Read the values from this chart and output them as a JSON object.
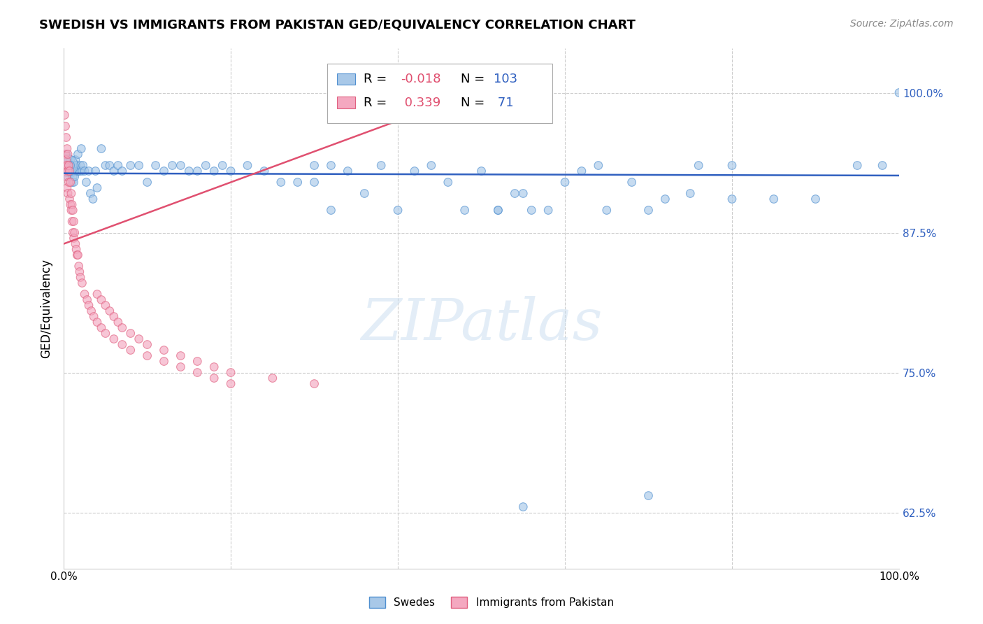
{
  "title": "SWEDISH VS IMMIGRANTS FROM PAKISTAN GED/EQUIVALENCY CORRELATION CHART",
  "source": "Source: ZipAtlas.com",
  "ylabel": "GED/Equivalency",
  "xlim": [
    0.0,
    1.0
  ],
  "ylim": [
    0.575,
    1.04
  ],
  "yticks": [
    0.625,
    0.75,
    0.875,
    1.0
  ],
  "ytick_labels": [
    "62.5%",
    "75.0%",
    "87.5%",
    "100.0%"
  ],
  "xticks": [
    0.0,
    0.2,
    0.4,
    0.6,
    0.8,
    1.0
  ],
  "xtick_labels": [
    "0.0%",
    "",
    "",
    "",
    "",
    "100.0%"
  ],
  "swedes_R": -0.018,
  "swedes_N": 103,
  "pakistan_R": 0.339,
  "pakistan_N": 71,
  "swedes_color": "#a8c8e8",
  "pakistan_color": "#f4a8c0",
  "swedes_edge_color": "#5090d0",
  "pakistan_edge_color": "#e06080",
  "swedes_line_color": "#3060c0",
  "pakistan_line_color": "#e05070",
  "watermark_color": "#c8ddf0",
  "title_fontsize": 13,
  "source_fontsize": 10,
  "legend_R_color": "#e05070",
  "legend_N_color": "#3060c0",
  "bottom_legend_swedes": "Swedes",
  "bottom_legend_pakistan": "Immigrants from Pakistan"
}
